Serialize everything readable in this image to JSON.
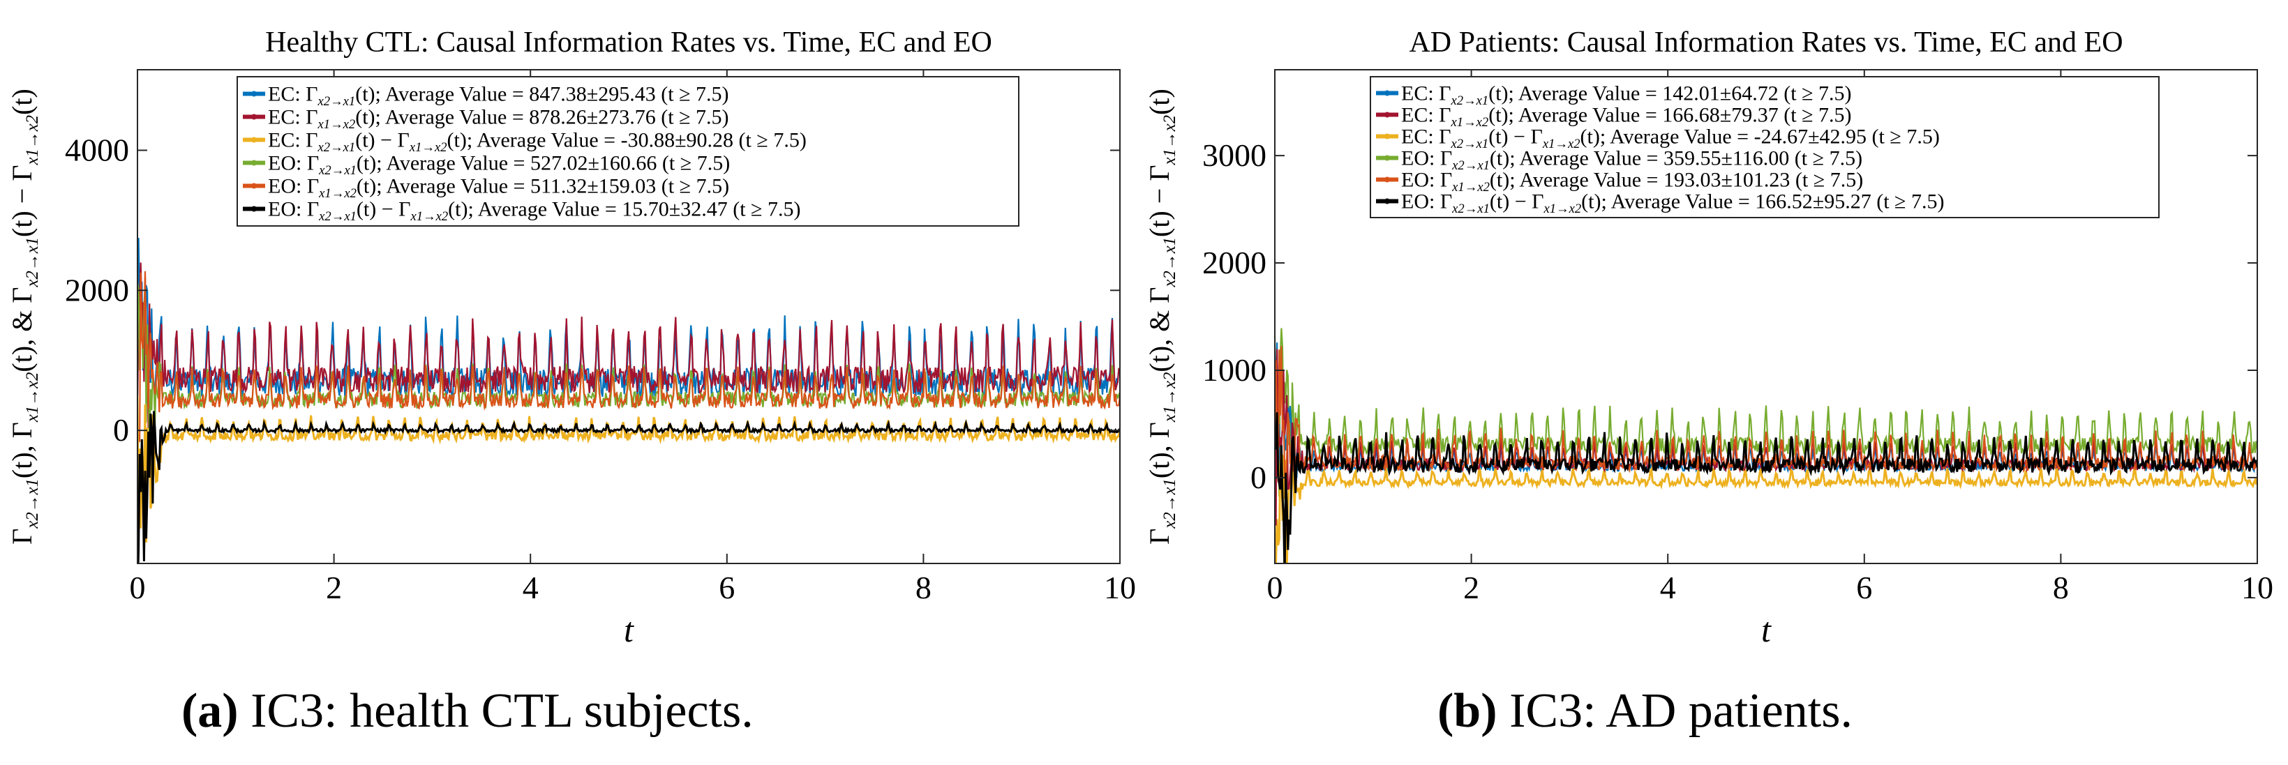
{
  "colors": {
    "ec_x2_to_x1": "#0072BD",
    "ec_x1_to_x2": "#A2142F",
    "ec_diff": "#EDB120",
    "eo_x2_to_x1": "#77AC30",
    "eo_x1_to_x2": "#D95319",
    "eo_diff": "#000000"
  },
  "captions": [
    {
      "letter": "(a)",
      "text": " IC3: health CTL subjects."
    },
    {
      "letter": "(b)",
      "text": " IC3: AD patients."
    }
  ],
  "chart_data": [
    {
      "type": "line",
      "title": "Healthy CTL: Causal Information Rates vs. Time, EC and EO",
      "xlabel": "t",
      "ylabel": "Γx2→x1(t), Γx1→x2(t), & Γx2→x1(t) − Γx1→x2(t)",
      "xlim": [
        0,
        10
      ],
      "ylim": [
        -1900,
        5150
      ],
      "xticks": [
        "0",
        "2",
        "4",
        "6",
        "8",
        "10"
      ],
      "yticks": [
        "0",
        "2000",
        "4000"
      ],
      "grid": false,
      "legend_position": "top-center",
      "series": [
        {
          "key": "ec_x2_to_x1",
          "name": "EC: Γx2→x1(t); Average Value = 847.38±295.43 (t ≥ 7.5)",
          "mean": 847.38,
          "std": 295.43
        },
        {
          "key": "ec_x1_to_x2",
          "name": "EC: Γx1→x2(t); Average Value = 878.26±273.76 (t ≥ 7.5)",
          "mean": 878.26,
          "std": 273.76
        },
        {
          "key": "ec_diff",
          "name": "EC: Γx2→x1(t) − Γx1→x2(t); Average Value = -30.88±90.28 (t ≥ 7.5)",
          "mean": -30.88,
          "std": 90.28
        },
        {
          "key": "eo_x2_to_x1",
          "name": "EO: Γx2→x1(t); Average Value = 527.02±160.66 (t ≥ 7.5)",
          "mean": 527.02,
          "std": 160.66
        },
        {
          "key": "eo_x1_to_x2",
          "name": "EO: Γx1→x2(t); Average Value = 511.32±159.03 (t ≥ 7.5)",
          "mean": 511.32,
          "std": 159.03
        },
        {
          "key": "eo_diff",
          "name": "EO: Γx2→x1(t) − Γx1→x2(t); Average Value = 15.70±32.47 (t ≥ 7.5)",
          "mean": 15.7,
          "std": 32.47
        }
      ]
    },
    {
      "type": "line",
      "title": "AD Patients: Causal Information Rates vs. Time, EC and EO",
      "xlabel": "t",
      "ylabel": "Γx2→x1(t), Γx1→x2(t), & Γx2→x1(t) − Γx1→x2(t)",
      "xlim": [
        0,
        10
      ],
      "ylim": [
        -800,
        3800
      ],
      "xticks": [
        "0",
        "2",
        "4",
        "6",
        "8",
        "10"
      ],
      "yticks": [
        "0",
        "1000",
        "2000",
        "3000"
      ],
      "grid": false,
      "legend_position": "top-center",
      "series": [
        {
          "key": "ec_x2_to_x1",
          "name": "EC: Γx2→x1(t); Average Value = 142.01±64.72 (t ≥ 7.5)",
          "mean": 142.01,
          "std": 64.72
        },
        {
          "key": "ec_x1_to_x2",
          "name": "EC: Γx1→x2(t); Average Value = 166.68±79.37 (t ≥ 7.5)",
          "mean": 166.68,
          "std": 79.37
        },
        {
          "key": "ec_diff",
          "name": "EC: Γx2→x1(t) − Γx1→x2(t); Average Value = -24.67±42.95 (t ≥ 7.5)",
          "mean": -24.67,
          "std": 42.95
        },
        {
          "key": "eo_x2_to_x1",
          "name": "EO: Γx2→x1(t); Average Value = 359.55±116.00 (t ≥ 7.5)",
          "mean": 359.55,
          "std": 116.0
        },
        {
          "key": "eo_x1_to_x2",
          "name": "EO: Γx1→x2(t); Average Value = 193.03±101.23 (t ≥ 7.5)",
          "mean": 193.03,
          "std": 101.23
        },
        {
          "key": "eo_diff",
          "name": "EO: Γx2→x1(t) − Γx1→x2(t); Average Value = 166.52±95.27 (t ≥ 7.5)",
          "mean": 166.52,
          "std": 95.27
        }
      ]
    }
  ]
}
